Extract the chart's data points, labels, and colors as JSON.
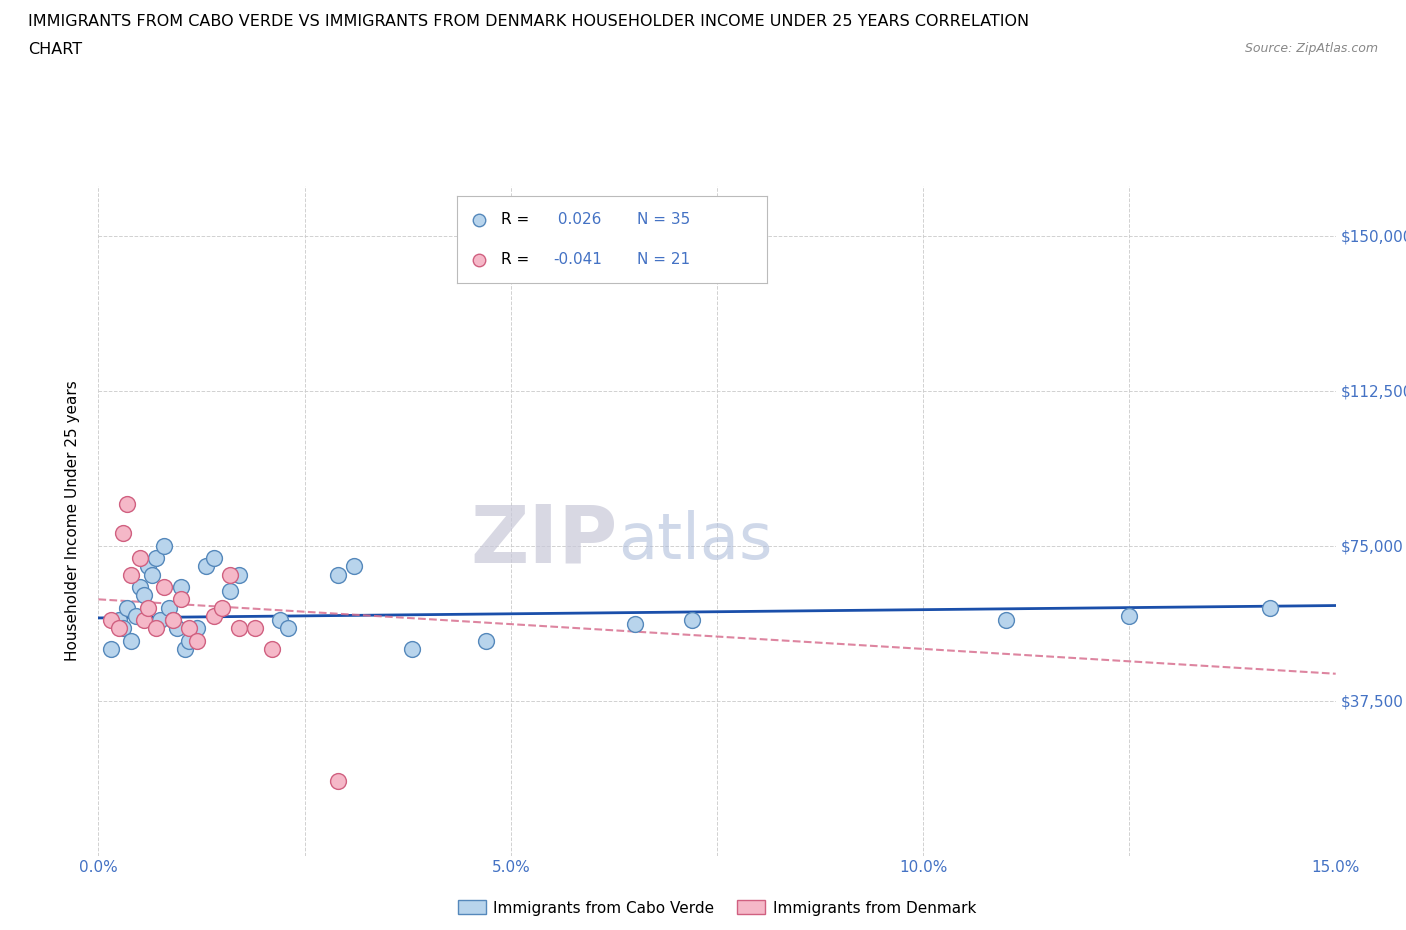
{
  "title_line1": "IMMIGRANTS FROM CABO VERDE VS IMMIGRANTS FROM DENMARK HOUSEHOLDER INCOME UNDER 25 YEARS CORRELATION",
  "title_line2": "CHART",
  "source": "Source: ZipAtlas.com",
  "ylabel": "Householder Income Under 25 years",
  "xlim": [
    0.0,
    15.0
  ],
  "ylim": [
    0,
    162000
  ],
  "yticks": [
    0,
    37500,
    75000,
    112500,
    150000
  ],
  "ytick_labels": [
    "",
    "$37,500",
    "$75,000",
    "$112,500",
    "$150,000"
  ],
  "xticks": [
    0.0,
    2.5,
    5.0,
    7.5,
    10.0,
    12.5,
    15.0
  ],
  "xtick_labels": [
    "0.0%",
    "",
    "5.0%",
    "",
    "10.0%",
    "",
    "15.0%"
  ],
  "cabo_verde_color": "#b8d4ec",
  "denmark_color": "#f5b8c8",
  "cabo_verde_edge": "#5588bb",
  "denmark_edge": "#d06080",
  "trend_blue": "#1a4faa",
  "trend_pink": "#d87090",
  "legend_r_blue": "0.026",
  "legend_n_blue": "35",
  "legend_r_pink": "-0.041",
  "legend_n_pink": "21",
  "cabo_verde_x": [
    0.15,
    0.25,
    0.3,
    0.35,
    0.4,
    0.45,
    0.5,
    0.55,
    0.6,
    0.65,
    0.7,
    0.75,
    0.8,
    0.85,
    0.9,
    0.95,
    1.0,
    1.05,
    1.1,
    1.2,
    1.3,
    1.4,
    1.6,
    1.7,
    2.2,
    2.3,
    2.9,
    3.1,
    3.8,
    4.7,
    6.5,
    7.2,
    11.0,
    12.5,
    14.2
  ],
  "cabo_verde_y": [
    50000,
    57000,
    55000,
    60000,
    52000,
    58000,
    65000,
    63000,
    70000,
    68000,
    72000,
    57000,
    75000,
    60000,
    57000,
    55000,
    65000,
    50000,
    52000,
    55000,
    70000,
    72000,
    64000,
    68000,
    57000,
    55000,
    68000,
    70000,
    50000,
    52000,
    56000,
    57000,
    57000,
    58000,
    60000
  ],
  "denmark_x": [
    0.15,
    0.25,
    0.3,
    0.35,
    0.4,
    0.5,
    0.55,
    0.6,
    0.7,
    0.8,
    0.9,
    1.0,
    1.1,
    1.2,
    1.4,
    1.5,
    1.6,
    1.7,
    1.9,
    2.1,
    2.9
  ],
  "denmark_y": [
    57000,
    55000,
    78000,
    85000,
    68000,
    72000,
    57000,
    60000,
    55000,
    65000,
    57000,
    62000,
    55000,
    52000,
    58000,
    60000,
    68000,
    55000,
    55000,
    50000,
    18000
  ],
  "grid_color": "#cccccc",
  "background_color": "#ffffff",
  "tick_label_color": "#4472c4",
  "watermark_zip_color": "#c8c8d8",
  "watermark_atlas_color": "#a8b8d8"
}
